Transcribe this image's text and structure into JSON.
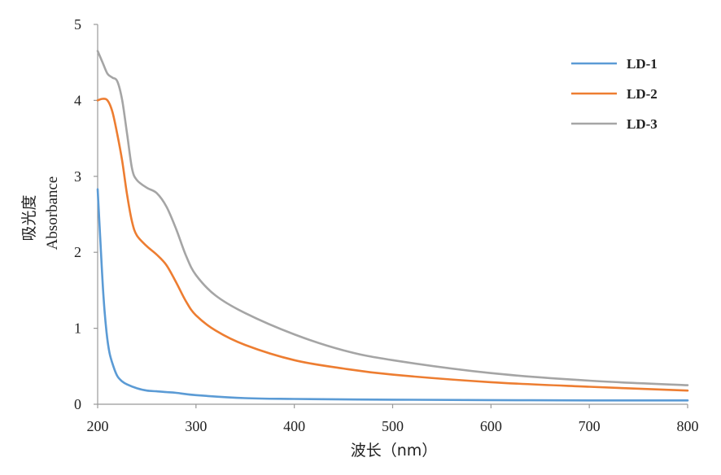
{
  "chart_data": {
    "type": "line",
    "title": "",
    "xlabel": "波长（nm）",
    "ylabel_cn": "吸光度",
    "ylabel_en": "Absorbance",
    "xlim": [
      200,
      800
    ],
    "ylim": [
      0,
      5
    ],
    "xticks": [
      "200",
      "300",
      "400",
      "500",
      "600",
      "700",
      "800"
    ],
    "yticks": [
      "0",
      "1",
      "2",
      "3",
      "4",
      "5"
    ],
    "grid": false,
    "legend_position": "top-right",
    "series": [
      {
        "name": "LD-1",
        "color": "#5b9bd5",
        "x": [
          200,
          203,
          206,
          209,
          212,
          216,
          220,
          225,
          230,
          240,
          250,
          260,
          270,
          280,
          300,
          350,
          400,
          500,
          600,
          700,
          800
        ],
        "y": [
          2.83,
          2.1,
          1.4,
          0.95,
          0.68,
          0.5,
          0.37,
          0.3,
          0.26,
          0.21,
          0.18,
          0.17,
          0.16,
          0.15,
          0.12,
          0.08,
          0.07,
          0.06,
          0.055,
          0.05,
          0.05
        ]
      },
      {
        "name": "LD-2",
        "color": "#ed7d31",
        "x": [
          200,
          205,
          210,
          215,
          220,
          225,
          230,
          235,
          240,
          250,
          260,
          270,
          280,
          290,
          300,
          320,
          350,
          400,
          450,
          500,
          600,
          700,
          800
        ],
        "y": [
          4.0,
          4.02,
          4.0,
          3.85,
          3.55,
          3.2,
          2.75,
          2.4,
          2.22,
          2.08,
          1.97,
          1.83,
          1.6,
          1.35,
          1.17,
          0.97,
          0.78,
          0.58,
          0.47,
          0.39,
          0.29,
          0.23,
          0.18
        ]
      },
      {
        "name": "LD-3",
        "color": "#a5a5a5",
        "x": [
          200,
          205,
          210,
          215,
          220,
          225,
          230,
          235,
          240,
          250,
          260,
          270,
          280,
          290,
          300,
          320,
          350,
          400,
          450,
          500,
          600,
          700,
          800
        ],
        "y": [
          4.65,
          4.5,
          4.35,
          4.3,
          4.25,
          4.0,
          3.55,
          3.1,
          2.95,
          2.85,
          2.78,
          2.6,
          2.3,
          1.95,
          1.7,
          1.43,
          1.2,
          0.92,
          0.71,
          0.58,
          0.41,
          0.31,
          0.25
        ]
      }
    ]
  }
}
